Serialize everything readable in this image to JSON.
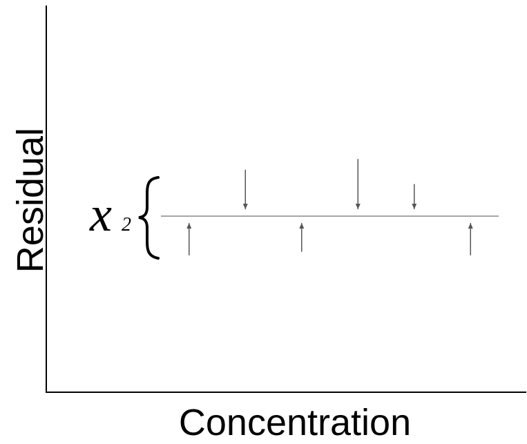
{
  "chart_data": {
    "type": "scatter",
    "title": "",
    "xlabel": "Concentration",
    "ylabel": "Residual",
    "grid": false,
    "legend": "none",
    "baseline_label": {
      "symbol": "x",
      "subscript": "2"
    },
    "residuals": [
      {
        "x": 1,
        "y": -0.9
      },
      {
        "x": 2,
        "y": 1.1
      },
      {
        "x": 3,
        "y": -0.8
      },
      {
        "x": 4,
        "y": 1.4
      },
      {
        "x": 5,
        "y": 0.7
      },
      {
        "x": 6,
        "y": -0.9
      }
    ],
    "colors": {
      "axis": "#000000",
      "baseline": "#a6a6a6",
      "arrow": "#555555",
      "text": "#000000"
    }
  }
}
